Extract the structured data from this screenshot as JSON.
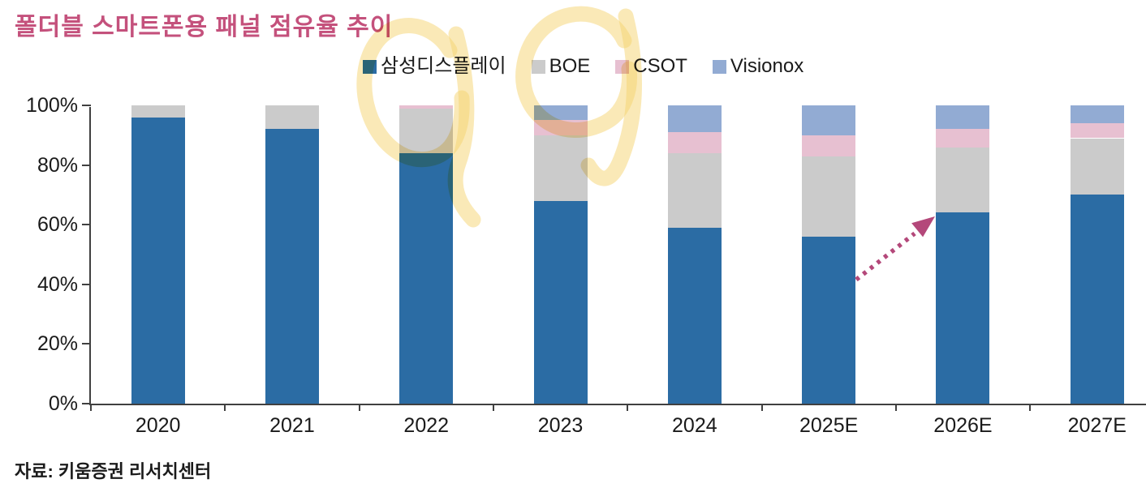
{
  "title": "폴더블 스마트폰용 패널 점유율 추이",
  "source": "자료: 키움증권 리서치센터",
  "colors": {
    "title": "#C4517C",
    "arrow": "#B4487A",
    "highlighter": "#F5D470",
    "axis": "#404040",
    "text": "#1A1A1A"
  },
  "chart_data": {
    "type": "stacked-bar",
    "title": "폴더블 스마트폰용 패널 점유율 추이",
    "unit": "%",
    "categories": [
      "2020",
      "2021",
      "2022",
      "2023",
      "2024",
      "2025E",
      "2026E",
      "2027E"
    ],
    "series": [
      {
        "id": "samsung-display",
        "name": "삼성디스플레이",
        "color": "#2B6CA4",
        "values": [
          96,
          92,
          84,
          68,
          59,
          56,
          64,
          70
        ]
      },
      {
        "id": "boe",
        "name": "BOE",
        "color": "#CBCBCB",
        "values": [
          4,
          8,
          15,
          22,
          25,
          27,
          22,
          19
        ]
      },
      {
        "id": "csot",
        "name": "CSOT",
        "color": "#E7C0D1",
        "values": [
          0,
          0,
          1,
          5,
          7,
          7,
          6,
          5
        ]
      },
      {
        "id": "visionox",
        "name": "Visionox",
        "color": "#92ABD3",
        "values": [
          0,
          0,
          0,
          5,
          9,
          10,
          8,
          6
        ]
      }
    ],
    "y_ticks": [
      "0%",
      "20%",
      "40%",
      "60%",
      "80%",
      "100%"
    ],
    "ylim": [
      0,
      100
    ],
    "grid": "off",
    "legend_position": "top",
    "annotations": [
      {
        "type": "dotted-arrow",
        "color": "#B4487A",
        "note": "upward arrow from 2025E toward 2026E 삼성디스플레이 segment top"
      },
      {
        "type": "highlighter-scribble",
        "color": "#F5D470",
        "note": "yellow hand-drawn marks over upper chart area"
      }
    ]
  }
}
